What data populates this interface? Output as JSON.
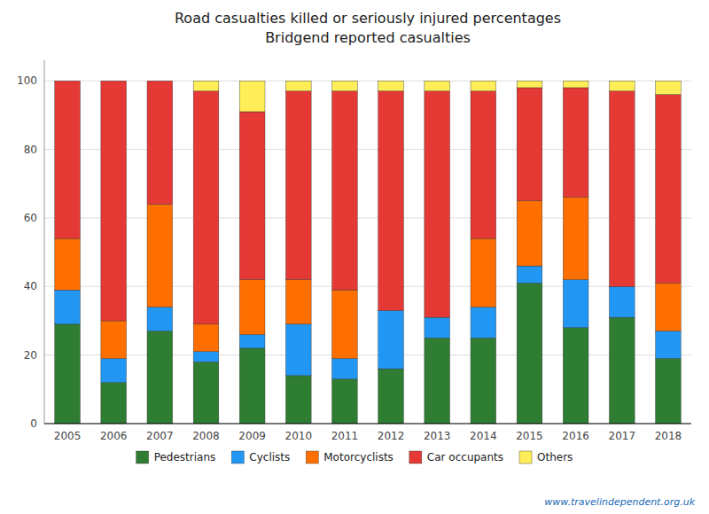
{
  "chart_data": {
    "type": "bar",
    "stacked": true,
    "title": "Road casualties killed or seriously injured percentages",
    "subtitle": "Bridgend reported casualties",
    "categories": [
      "2005",
      "2006",
      "2007",
      "2008",
      "2009",
      "2010",
      "2011",
      "2012",
      "2013",
      "2014",
      "2015",
      "2016",
      "2017",
      "2018"
    ],
    "series": [
      {
        "name": "Pedestrians",
        "color": "#2e7d32",
        "values": [
          29,
          12,
          27,
          18,
          22,
          14,
          13,
          16,
          25,
          25,
          41,
          28,
          31,
          19
        ]
      },
      {
        "name": "Cyclists",
        "color": "#2196f3",
        "values": [
          10,
          7,
          7,
          3,
          4,
          15,
          6,
          17,
          6,
          9,
          5,
          14,
          9,
          8
        ]
      },
      {
        "name": "Motorcyclists",
        "color": "#ff6f00",
        "values": [
          15,
          11,
          30,
          8,
          16,
          13,
          20,
          0,
          0,
          20,
          19,
          24,
          0,
          14
        ]
      },
      {
        "name": "Car occupants",
        "color": "#e53935",
        "values": [
          46,
          70,
          36,
          68,
          49,
          55,
          58,
          64,
          66,
          43,
          33,
          32,
          57,
          55
        ]
      },
      {
        "name": "Others",
        "color": "#ffee58",
        "values": [
          0,
          0,
          0,
          3,
          9,
          3,
          3,
          3,
          3,
          3,
          2,
          2,
          3,
          4
        ]
      }
    ],
    "ylim": [
      0,
      106
    ],
    "yticks": [
      0,
      20,
      40,
      60,
      80,
      100
    ],
    "grid": true,
    "legend": "bottom",
    "annotations": [
      "www.travelindependent.org.uk"
    ]
  }
}
